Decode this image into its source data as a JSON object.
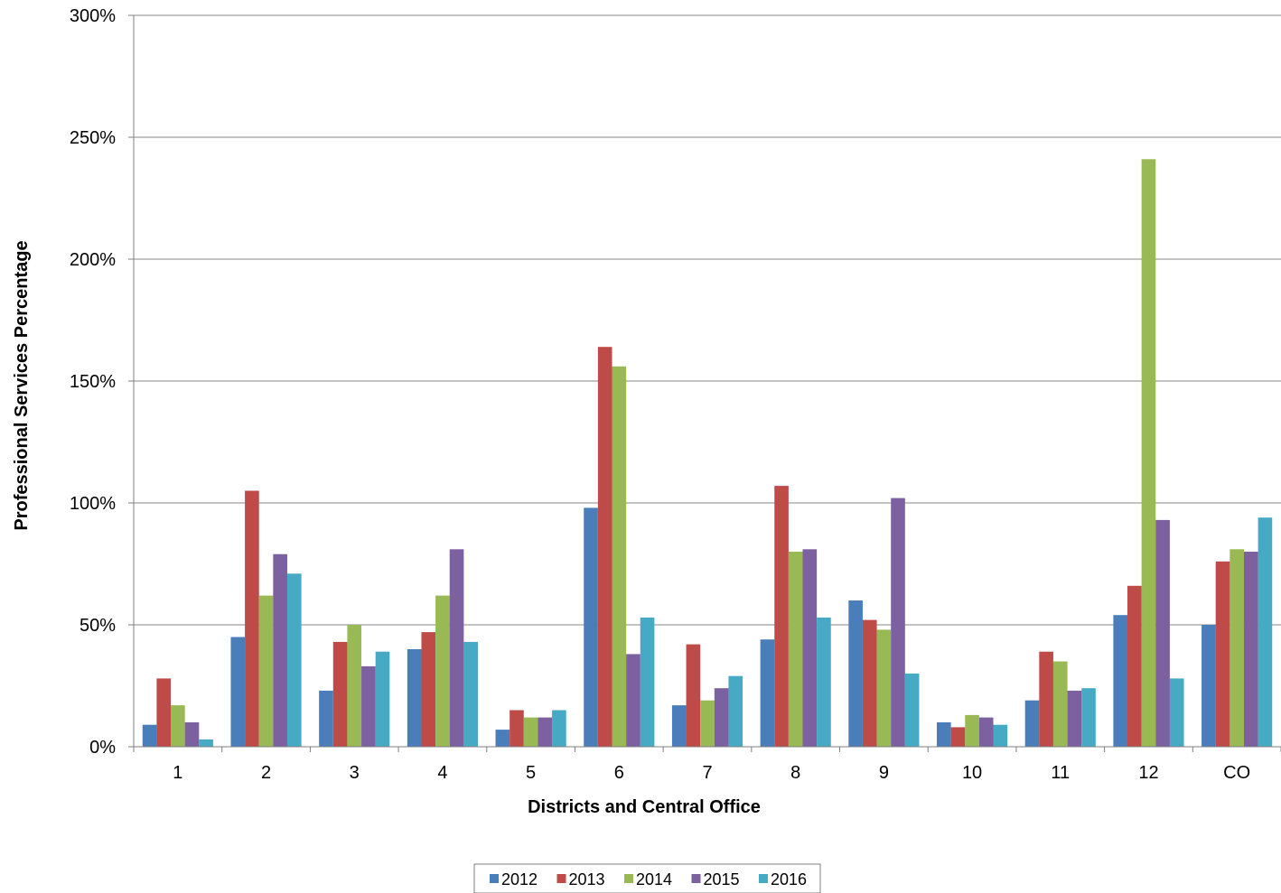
{
  "chart_data": {
    "type": "bar",
    "title": "",
    "xlabel": "Districts and Central Office",
    "ylabel": "Professional Services Percentage",
    "ylim": [
      0,
      300
    ],
    "y_tick_values": [
      0,
      50,
      100,
      150,
      200,
      250,
      300
    ],
    "y_tick_labels": [
      "0%",
      "50%",
      "100%",
      "150%",
      "200%",
      "250%",
      "300%"
    ],
    "y_unit": "%",
    "grid": true,
    "legend_position": "bottom",
    "categories": [
      "1",
      "2",
      "3",
      "4",
      "5",
      "6",
      "7",
      "8",
      "9",
      "10",
      "11",
      "12",
      "CO"
    ],
    "series": [
      {
        "name": "2012",
        "color": "#4a7ebb",
        "values": [
          9,
          45,
          23,
          40,
          7,
          98,
          17,
          44,
          60,
          10,
          19,
          54,
          50
        ]
      },
      {
        "name": "2013",
        "color": "#be4b48",
        "values": [
          28,
          105,
          43,
          47,
          15,
          164,
          42,
          107,
          52,
          8,
          39,
          66,
          76
        ]
      },
      {
        "name": "2014",
        "color": "#98b954",
        "values": [
          17,
          62,
          50,
          62,
          12,
          156,
          19,
          80,
          48,
          13,
          35,
          241,
          81
        ]
      },
      {
        "name": "2015",
        "color": "#7d60a0",
        "values": [
          10,
          79,
          33,
          81,
          12,
          38,
          24,
          81,
          102,
          12,
          23,
          93,
          80
        ]
      },
      {
        "name": "2016",
        "color": "#46aac5",
        "values": [
          3,
          71,
          39,
          43,
          15,
          53,
          29,
          53,
          30,
          9,
          24,
          28,
          94
        ]
      }
    ]
  }
}
